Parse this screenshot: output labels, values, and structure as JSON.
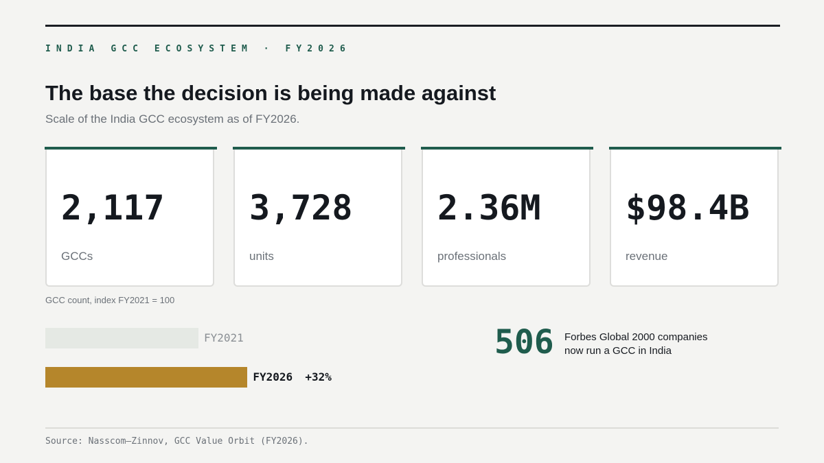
{
  "header": {
    "eyebrow": "INDIA GCC ECOSYSTEM · FY2026",
    "title": "The base the decision is being made against",
    "subtitle": "Scale of the India GCC ecosystem as of FY2026."
  },
  "cards": [
    {
      "value": "2,117",
      "label": "GCCs"
    },
    {
      "value": "3,728",
      "label": "units"
    },
    {
      "value": "2.36M",
      "label": "professionals"
    },
    {
      "value": "$98.4B",
      "label": "revenue"
    }
  ],
  "index_chart": {
    "caption": "GCC count, index FY2021 = 100",
    "bars": [
      {
        "label": "FY2021",
        "value": 100,
        "color": "#e5e9e4"
      },
      {
        "label": "FY2026",
        "value": 132,
        "change": "+32%",
        "color": "#b5862b"
      }
    ]
  },
  "stat": {
    "number": "506",
    "text_lines": [
      "Forbes Global 2000 companies",
      "now run a GCC in India"
    ]
  },
  "source": "Source: Nasscom—Zinnov, GCC Value Orbit (FY2026)."
}
